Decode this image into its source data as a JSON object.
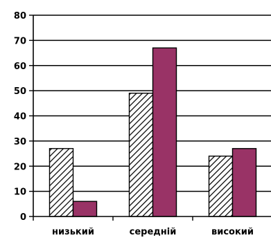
{
  "chart_data": {
    "type": "bar",
    "title": "",
    "xlabel": "",
    "ylabel": "",
    "categories": [
      "низький",
      "середній",
      "високий"
    ],
    "series": [
      {
        "values": [
          27,
          49,
          24
        ],
        "pattern": "hatched",
        "color": "#000000"
      },
      {
        "values": [
          6,
          67,
          27
        ],
        "pattern": "solid",
        "color": "#993366"
      }
    ],
    "ylim": [
      0,
      80
    ],
    "yticks": [
      "0",
      "10",
      "20",
      "30",
      "40",
      "50",
      "60",
      "70",
      "80"
    ],
    "grid": true,
    "legend": "none"
  }
}
